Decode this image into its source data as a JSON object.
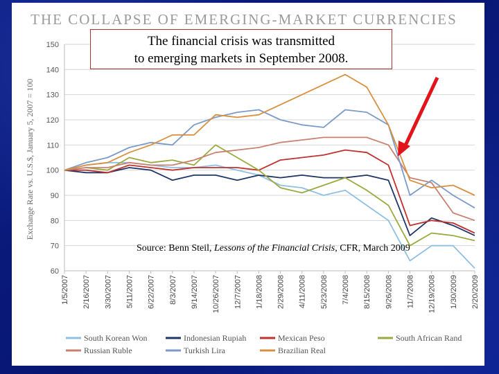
{
  "slide": {
    "callout_line1": "The financial crisis was transmitted",
    "callout_line2": "to emerging markets in September 2008.",
    "source_prefix": "Source: Benn Steil, ",
    "source_title": "Lessons of the Financial Crisis",
    "source_suffix": ", CFR, March 2009"
  },
  "colors": {
    "background": "#0a1a78",
    "arrow": "#e0141a"
  },
  "chart_data": {
    "type": "line",
    "title": "THE COLLAPSE OF EMERGING-MARKET CURRENCIES",
    "xlabel": "",
    "ylabel": "Exchange Rate vs. U.S.$, January 5, 2007 = 100",
    "ylim": [
      60,
      150
    ],
    "yticks": [
      60,
      70,
      80,
      90,
      100,
      110,
      120,
      130,
      140,
      150
    ],
    "grid": true,
    "legend_position": "bottom",
    "x": [
      "1/5/2007",
      "2/16/2007",
      "3/30/2007",
      "5/11/2007",
      "6/22/2007",
      "8/3/2007",
      "9/14/2007",
      "10/26/2007",
      "12/7/2007",
      "1/18/2008",
      "2/29/2008",
      "4/11/2008",
      "5/23/2008",
      "7/4/2008",
      "8/15/2008",
      "9/26/2008",
      "11/7/2008",
      "12/19/2008",
      "1/30/2009",
      "2/20/2009"
    ],
    "series": [
      {
        "name": "South Korean Won",
        "color": "#8fbfe3",
        "values": [
          100,
          102,
          103,
          103,
          102,
          101,
          101,
          102,
          100,
          98,
          94,
          93,
          90,
          92,
          86,
          80,
          64,
          70,
          70,
          61
        ]
      },
      {
        "name": "Indonesian Rupiah",
        "color": "#1f3566",
        "values": [
          100,
          99,
          99,
          101,
          100,
          96,
          98,
          98,
          96,
          98,
          97,
          98,
          97,
          97,
          98,
          96,
          74,
          81,
          78,
          74
        ]
      },
      {
        "name": "Mexican Peso",
        "color": "#c0302e",
        "values": [
          100,
          100,
          99,
          102,
          101,
          100,
          101,
          101,
          101,
          100,
          104,
          105,
          106,
          108,
          107,
          102,
          78,
          80,
          79,
          75
        ]
      },
      {
        "name": "South African Rand",
        "color": "#9aaa3e",
        "values": [
          100,
          101,
          100,
          105,
          103,
          104,
          102,
          110,
          105,
          100,
          93,
          91,
          94,
          97,
          92,
          86,
          70,
          75,
          74,
          72
        ]
      },
      {
        "name": "Russian Ruble",
        "color": "#c98070",
        "values": [
          100,
          101,
          101,
          103,
          102,
          102,
          104,
          107,
          108,
          109,
          111,
          112,
          113,
          113,
          113,
          110,
          97,
          95,
          83,
          80
        ]
      },
      {
        "name": "Turkish Lira",
        "color": "#7c9ac8",
        "values": [
          100,
          103,
          105,
          109,
          111,
          110,
          118,
          121,
          123,
          124,
          120,
          118,
          117,
          124,
          123,
          118,
          90,
          96,
          90,
          85
        ]
      },
      {
        "name": "Brazilian Real",
        "color": "#d89040",
        "values": [
          100,
          102,
          103,
          107,
          110,
          114,
          114,
          122,
          121,
          122,
          126,
          130,
          134,
          138,
          133,
          118,
          96,
          93,
          94,
          90
        ]
      }
    ]
  }
}
